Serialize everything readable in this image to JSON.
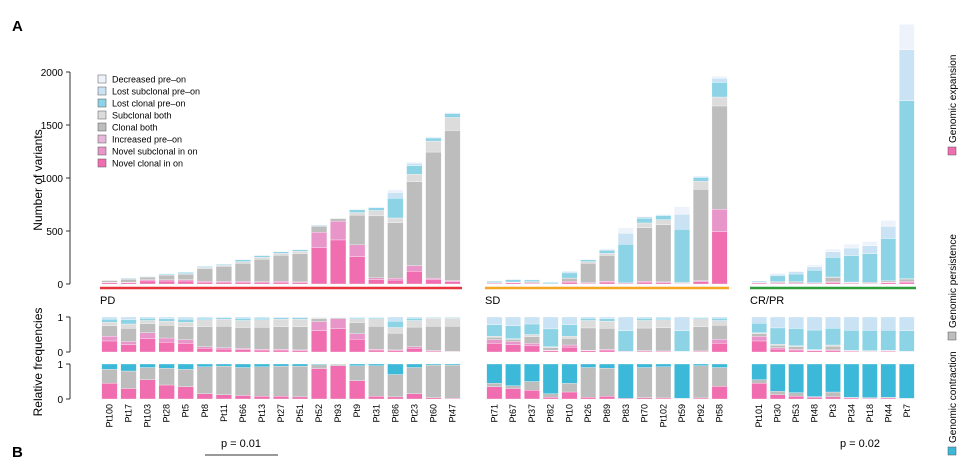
{
  "panel_labels": [
    "A",
    "B"
  ],
  "chart_data": {
    "type": "bar",
    "subtype": "stacked-bar-panels",
    "ylabel_top": "Number of variants",
    "ylabel_bottom": "Relative frequencies",
    "ylim_top": [
      0,
      2000
    ],
    "yticks_top": [
      0,
      500,
      1000,
      1500,
      2000
    ],
    "yticks_rel": [
      0,
      1
    ],
    "legend": {
      "position": "top-left",
      "items": [
        {
          "label": "Decreased pre–on",
          "color": "#eef3fb"
        },
        {
          "label": "Lost subclonal pre–on",
          "color": "#c9e3f4"
        },
        {
          "label": "Lost clonal pre–on",
          "color": "#8dd3e6"
        },
        {
          "label": "Subclonal both",
          "color": "#dcdcdc"
        },
        {
          "label": "Clonal both",
          "color": "#bdbdbd"
        },
        {
          "label": "Increased pre–on",
          "color": "#e6b8db"
        },
        {
          "label": "Novel subclonal in on",
          "color": "#e895c9"
        },
        {
          "label": "Novel clonal in on",
          "color": "#f06eb0"
        }
      ]
    },
    "right_labels": [
      {
        "label": "Genomic expansion",
        "color": "#f06eb0"
      },
      {
        "label": "Genomic persistence",
        "color": "#bdbdbd"
      },
      {
        "label": "Genomic contraction",
        "color": "#3cb8d8"
      }
    ],
    "groups": [
      {
        "name": "PD",
        "color": "#e8323c",
        "pvalue": "p = 0.01",
        "patients": [
          "Pt100",
          "Pt17",
          "Pt103",
          "Pt28",
          "Pt5",
          "Pt8",
          "Pt11",
          "Pt66",
          "Pt13",
          "Pt27",
          "Pt51",
          "Pt52",
          "Pt93",
          "Pt9",
          "Pt31",
          "Pt86",
          "Pt23",
          "Pt60",
          "Pt47"
        ],
        "totals": [
          40,
          60,
          75,
          100,
          115,
          170,
          190,
          235,
          275,
          310,
          330,
          560,
          625,
          710,
          730,
          890,
          1150,
          1390,
          1620
        ],
        "expansion": [
          0.45,
          0.3,
          0.55,
          0.4,
          0.35,
          0.15,
          0.12,
          0.1,
          0.08,
          0.08,
          0.06,
          0.87,
          0.95,
          0.52,
          0.08,
          0.06,
          0.15,
          0.04,
          0.02
        ],
        "contraction": [
          0.15,
          0.2,
          0.1,
          0.12,
          0.15,
          0.08,
          0.06,
          0.1,
          0.08,
          0.06,
          0.06,
          0.02,
          0.01,
          0.05,
          0.05,
          0.3,
          0.1,
          0.03,
          0.03
        ]
      },
      {
        "name": "SD",
        "color": "#f5a623",
        "pvalue": "",
        "patients": [
          "Pt71",
          "Pt67",
          "Pt37",
          "Pt82",
          "Pt10",
          "Pt26",
          "Pt89",
          "Pt83",
          "Pt70",
          "Pt102",
          "Pt59",
          "Pt92",
          "Pt58"
        ],
        "totals": [
          30,
          50,
          45,
          20,
          125,
          235,
          330,
          530,
          640,
          660,
          730,
          1020,
          1960
        ],
        "expansion": [
          0.35,
          0.3,
          0.25,
          0.05,
          0.2,
          0.05,
          0.08,
          0.02,
          0.04,
          0.03,
          0.01,
          0.03,
          0.36
        ],
        "contraction": [
          0.55,
          0.62,
          0.5,
          0.85,
          0.55,
          0.1,
          0.12,
          0.98,
          0.1,
          0.08,
          0.98,
          0.05,
          0.1
        ]
      },
      {
        "name": "CR/PR",
        "color": "#2e9e3a",
        "pvalue": "p = 0.02",
        "patients": [
          "Pt101",
          "Pt30",
          "Pt53",
          "Pt48",
          "Pt3",
          "Pt34",
          "Pt18",
          "Pt44",
          "Pt7"
        ],
        "totals": [
          30,
          100,
          125,
          180,
          330,
          375,
          400,
          600,
          2450
        ],
        "expansion": [
          0.45,
          0.12,
          0.08,
          0.05,
          0.06,
          0.03,
          0.02,
          0.03,
          0.01
        ],
        "contraction": [
          0.45,
          0.78,
          0.82,
          0.93,
          0.8,
          0.95,
          0.96,
          0.95,
          0.98
        ]
      }
    ]
  }
}
